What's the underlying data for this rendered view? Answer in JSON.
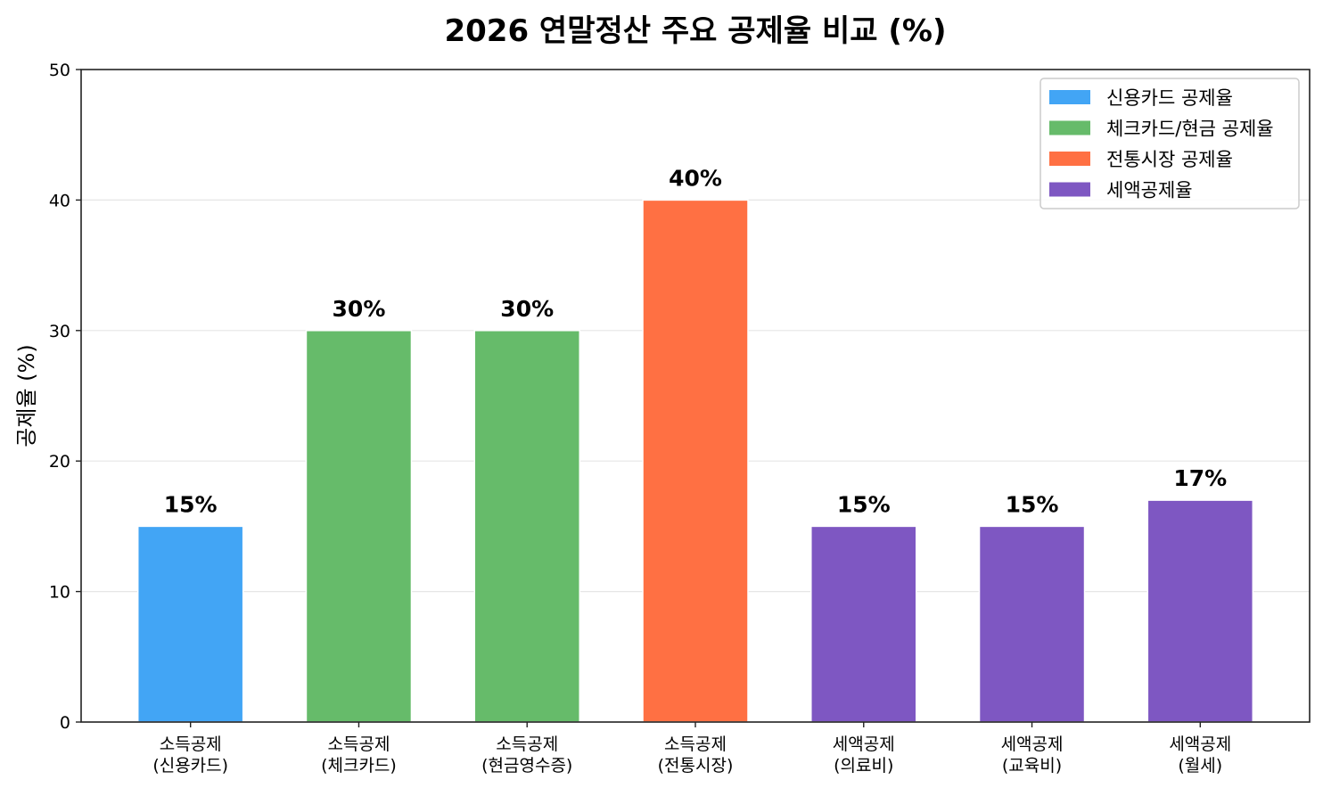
{
  "chart_data": {
    "type": "bar",
    "title": "2026 연말정산 주요 공제율 비교 (%)",
    "xlabel": "",
    "ylabel": "공제율 (%)",
    "ylim": [
      0,
      50
    ],
    "yticks": [
      0,
      10,
      20,
      30,
      40,
      50
    ],
    "grid": "y",
    "legend_position": "top-right",
    "categories": [
      [
        "소득공제",
        "(신용카드)"
      ],
      [
        "소득공제",
        "(체크카드)"
      ],
      [
        "소득공제",
        "(현금영수증)"
      ],
      [
        "소득공제",
        "(전통시장)"
      ],
      [
        "세액공제",
        "(의료비)"
      ],
      [
        "세액공제",
        "(교육비)"
      ],
      [
        "세액공제",
        "(월세)"
      ]
    ],
    "values": [
      15,
      30,
      30,
      40,
      15,
      15,
      17
    ],
    "value_labels": [
      "15%",
      "30%",
      "30%",
      "40%",
      "15%",
      "15%",
      "17%"
    ],
    "bar_groups": [
      0,
      1,
      1,
      2,
      3,
      3,
      3
    ],
    "legend": [
      {
        "label": "신용카드 공제율",
        "color": "#42A5F5"
      },
      {
        "label": "체크카드/현금 공제율",
        "color": "#66BB6A"
      },
      {
        "label": "전통시장 공제율",
        "color": "#FF7043"
      },
      {
        "label": "세액공제율",
        "color": "#7E57C2"
      }
    ]
  }
}
